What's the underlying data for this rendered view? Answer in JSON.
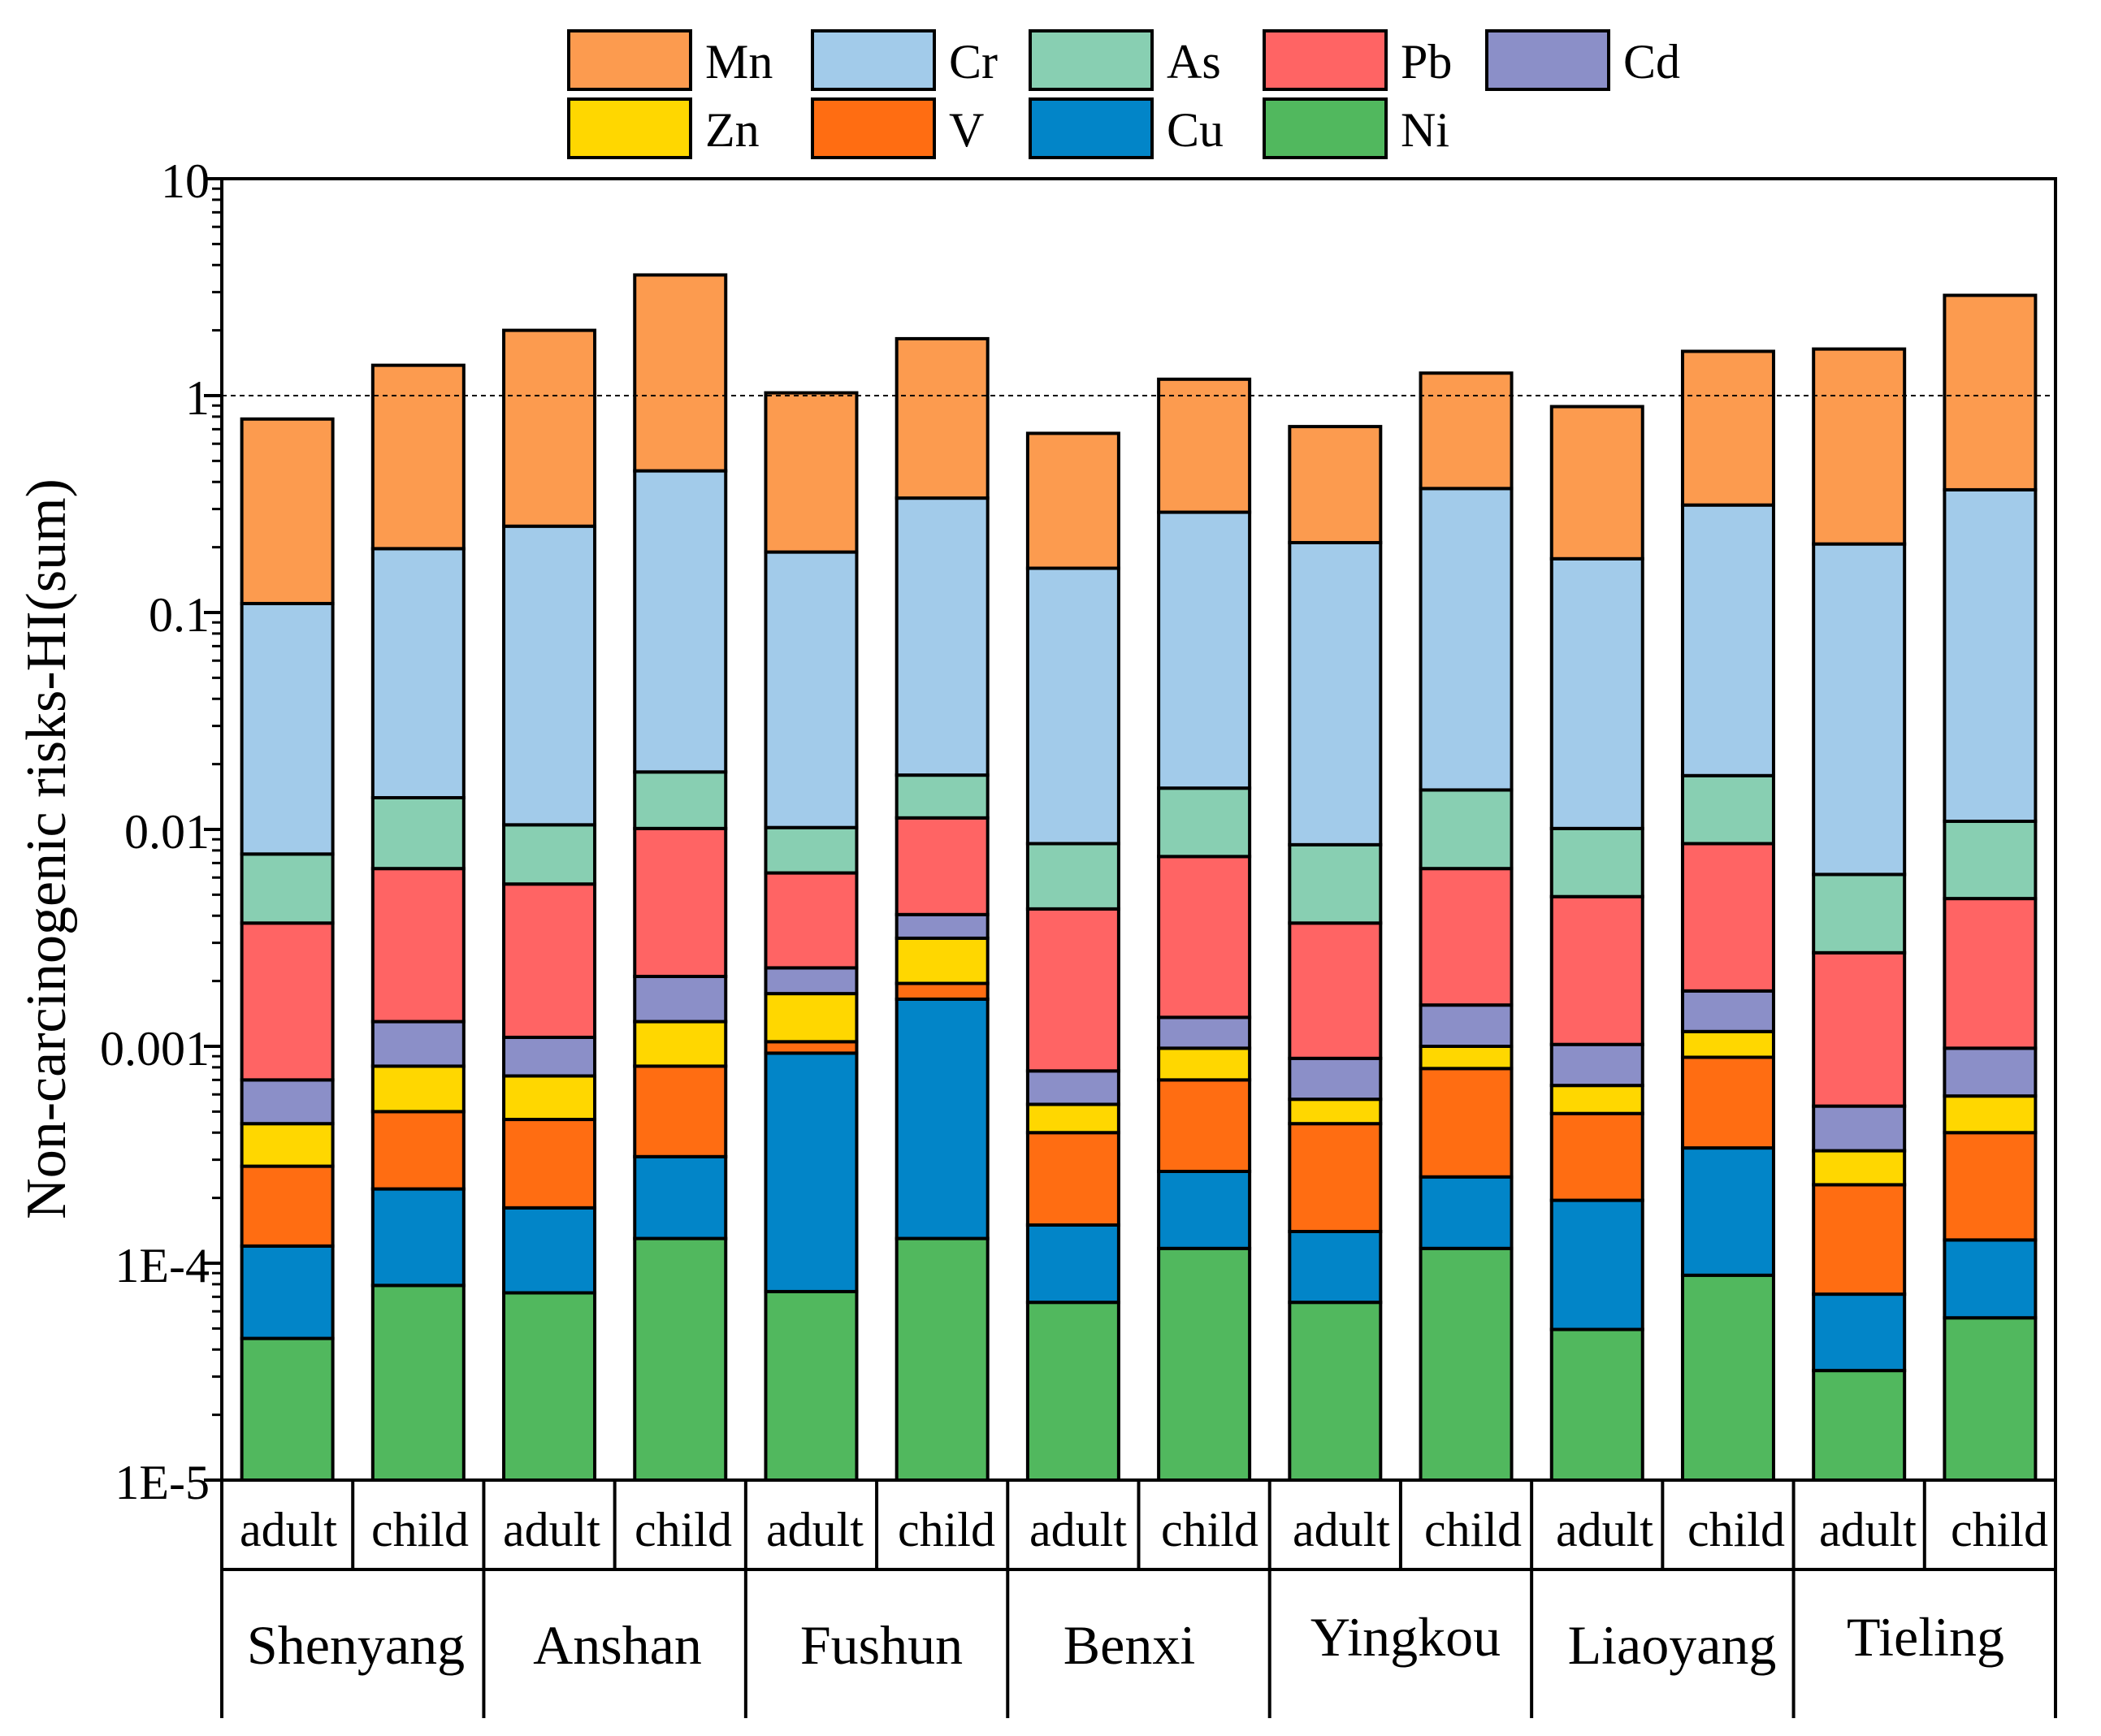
{
  "chart_data": {
    "type": "bar",
    "stacked": true,
    "yscale": "log",
    "ylim": [
      1e-05,
      10
    ],
    "ylabel": "Non-carcinogenic risks-HI(sum)",
    "ytick_values": [
      1e-05,
      0.0001,
      0.001,
      0.01,
      0.1,
      1,
      10
    ],
    "ytick_labels": [
      "1E-5",
      "1E-4",
      "0.001",
      "0.01",
      "0.1",
      "1",
      "10"
    ],
    "reference_line": 1,
    "groups": [
      "Shenyang",
      "Anshan",
      "Fushun",
      "Benxi",
      "Yingkou",
      "Liaoyang",
      "Tieling"
    ],
    "subgroups": [
      "adult",
      "child"
    ],
    "legend": [
      {
        "name": "Mn",
        "color": "#FC9B4F"
      },
      {
        "name": "Cr",
        "color": "#A2CBEA"
      },
      {
        "name": "As",
        "color": "#88CFB2"
      },
      {
        "name": "Pb",
        "color": "#FF6464"
      },
      {
        "name": "Cd",
        "color": "#8B8FC8"
      },
      {
        "name": "Zn",
        "color": "#FFD700"
      },
      {
        "name": "V",
        "color": "#FF6D12"
      },
      {
        "name": "Cu",
        "color": "#0285C8"
      },
      {
        "name": "Ni",
        "color": "#51B85E"
      }
    ],
    "stack_order": [
      "Ni",
      "Cu",
      "V",
      "Zn",
      "Cd",
      "Pb",
      "As",
      "Cr",
      "Mn"
    ],
    "bars": [
      {
        "group": "Shenyang",
        "subgroup": "adult",
        "cumulative": [
          4.5e-05,
          0.00012,
          0.00028,
          0.00044,
          0.0007,
          0.0037,
          0.0077,
          0.11,
          0.78
        ]
      },
      {
        "group": "Shenyang",
        "subgroup": "child",
        "cumulative": [
          7.9e-05,
          0.00022,
          0.0005,
          0.00081,
          0.0013,
          0.0066,
          0.014,
          0.197,
          1.38
        ]
      },
      {
        "group": "Anshan",
        "subgroup": "adult",
        "cumulative": [
          7.3e-05,
          0.00018,
          0.00046,
          0.00073,
          0.0011,
          0.0056,
          0.0105,
          0.25,
          2.0
        ]
      },
      {
        "group": "Anshan",
        "subgroup": "child",
        "cumulative": [
          0.00013,
          0.00031,
          0.00081,
          0.0013,
          0.0021,
          0.0101,
          0.0184,
          0.45,
          3.6
        ]
      },
      {
        "group": "Fushun",
        "subgroup": "adult",
        "cumulative": [
          7.4e-05,
          0.00093,
          0.00105,
          0.00175,
          0.0023,
          0.0063,
          0.0102,
          0.19,
          1.03
        ]
      },
      {
        "group": "Fushun",
        "subgroup": "child",
        "cumulative": [
          0.00013,
          0.00165,
          0.00195,
          0.00315,
          0.00405,
          0.0113,
          0.0178,
          0.337,
          1.83
        ]
      },
      {
        "group": "Benxi",
        "subgroup": "adult",
        "cumulative": [
          6.6e-05,
          0.00015,
          0.0004,
          0.00054,
          0.00077,
          0.0043,
          0.0086,
          0.16,
          0.67
        ]
      },
      {
        "group": "Benxi",
        "subgroup": "child",
        "cumulative": [
          0.000117,
          0.000265,
          0.0007,
          0.00098,
          0.00136,
          0.0075,
          0.0155,
          0.29,
          1.19
        ]
      },
      {
        "group": "Yingkou",
        "subgroup": "adult",
        "cumulative": [
          6.6e-05,
          0.00014,
          0.00044,
          0.00057,
          0.00088,
          0.0037,
          0.0085,
          0.21,
          0.72
        ]
      },
      {
        "group": "Yingkou",
        "subgroup": "child",
        "cumulative": [
          0.000117,
          0.00025,
          0.00079,
          0.001,
          0.00155,
          0.0066,
          0.0152,
          0.373,
          1.27
        ]
      },
      {
        "group": "Liaoyang",
        "subgroup": "adult",
        "cumulative": [
          4.95e-05,
          0.000195,
          0.00049,
          0.00066,
          0.00102,
          0.0049,
          0.0101,
          0.177,
          0.89
        ]
      },
      {
        "group": "Liaoyang",
        "subgroup": "child",
        "cumulative": [
          8.8e-05,
          0.00034,
          0.00089,
          0.00117,
          0.0018,
          0.0086,
          0.0177,
          0.313,
          1.6
        ]
      },
      {
        "group": "Tieling",
        "subgroup": "adult",
        "cumulative": [
          3.2e-05,
          7.2e-05,
          0.00023,
          0.00033,
          0.00053,
          0.0027,
          0.0062,
          0.207,
          1.64
        ]
      },
      {
        "group": "Tieling",
        "subgroup": "child",
        "cumulative": [
          5.6e-05,
          0.000128,
          0.0004,
          0.00059,
          0.00098,
          0.0048,
          0.0109,
          0.368,
          2.9
        ]
      }
    ]
  }
}
